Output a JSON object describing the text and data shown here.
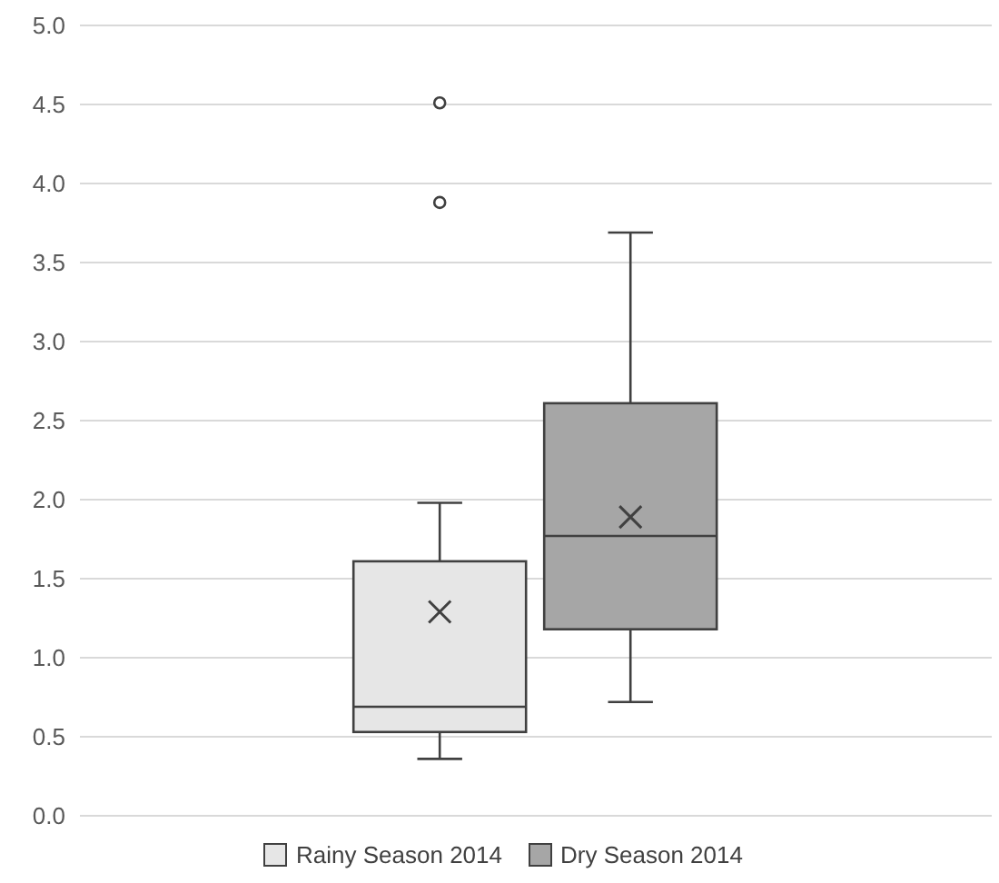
{
  "chart_data": {
    "type": "box",
    "categories": [
      null
    ],
    "series": [
      {
        "name": "Rainy Season 2014",
        "color": "#e6e6e6",
        "boxes": [
          {
            "low": 0.36,
            "q1": 0.53,
            "median": 0.69,
            "q3": 1.61,
            "high": 1.98,
            "mean": 1.29,
            "outliers": [
              3.88,
              4.51
            ]
          }
        ]
      },
      {
        "name": "Dry Season 2014",
        "color": "#a6a6a6",
        "boxes": [
          {
            "low": 0.72,
            "q1": 1.18,
            "median": 1.77,
            "q3": 2.61,
            "high": 3.69,
            "mean": 1.89
          }
        ]
      }
    ],
    "ylim": [
      0,
      5
    ],
    "yticks": [
      {
        "value": 0,
        "label": "0.0"
      },
      {
        "value": 0.5,
        "label": "0.5"
      },
      {
        "value": 1,
        "label": "1.0"
      },
      {
        "value": 1.5,
        "label": "1.5"
      },
      {
        "value": 2,
        "label": "2.0"
      },
      {
        "value": 2.5,
        "label": "2.5"
      },
      {
        "value": 3,
        "label": "3.0"
      },
      {
        "value": 3.5,
        "label": "3.5"
      },
      {
        "value": 4,
        "label": "4.0"
      },
      {
        "value": 4.5,
        "label": "4.5"
      },
      {
        "value": 5,
        "label": "5.0"
      }
    ],
    "grid": "y",
    "legend": "bottom",
    "tick_labels": "y"
  }
}
